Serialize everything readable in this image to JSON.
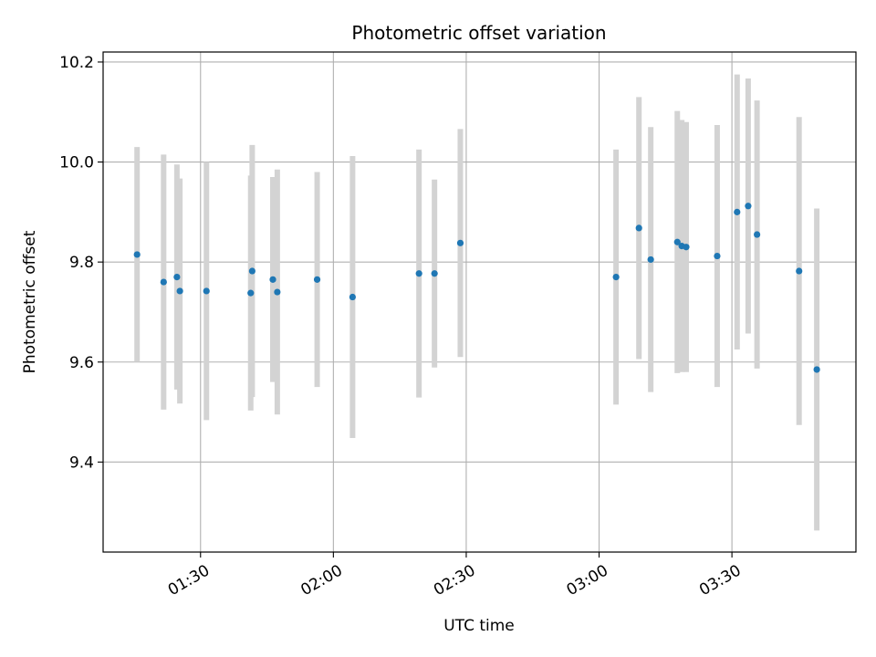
{
  "chart_data": {
    "type": "scatter",
    "title": "Photometric offset variation",
    "xlabel": "UTC time",
    "ylabel": "Photometric offset",
    "x_ticks": [
      "01:30",
      "02:00",
      "02:30",
      "03:00",
      "03:30"
    ],
    "y_ticks": [
      "9.4",
      "9.6",
      "9.8",
      "10.0",
      "10.2"
    ],
    "xlim": [
      "01:08",
      "03:58"
    ],
    "ylim": [
      9.22,
      10.22
    ],
    "grid": true,
    "errorbar_color": "#d3d3d3",
    "point_color": "#1f77b4",
    "points": [
      {
        "x": "01:15:40",
        "y": 9.815,
        "err": 0.215
      },
      {
        "x": "01:21:40",
        "y": 9.76,
        "err": 0.255
      },
      {
        "x": "01:24:40",
        "y": 9.77,
        "err": 0.225
      },
      {
        "x": "01:25:20",
        "y": 9.742,
        "err": 0.225
      },
      {
        "x": "01:31:20",
        "y": 9.742,
        "err": 0.258
      },
      {
        "x": "01:41:20",
        "y": 9.738,
        "err": 0.235
      },
      {
        "x": "01:41:40",
        "y": 9.782,
        "err": 0.252
      },
      {
        "x": "01:46:20",
        "y": 9.765,
        "err": 0.205
      },
      {
        "x": "01:47:20",
        "y": 9.74,
        "err": 0.245
      },
      {
        "x": "01:56:20",
        "y": 9.765,
        "err": 0.215
      },
      {
        "x": "02:04:20",
        "y": 9.73,
        "err": 0.282
      },
      {
        "x": "02:19:20",
        "y": 9.777,
        "err": 0.248
      },
      {
        "x": "02:22:50",
        "y": 9.777,
        "err": 0.188
      },
      {
        "x": "02:28:40",
        "y": 9.838,
        "err": 0.228
      },
      {
        "x": "03:03:50",
        "y": 9.77,
        "err": 0.255
      },
      {
        "x": "03:09:00",
        "y": 9.868,
        "err": 0.262
      },
      {
        "x": "03:11:40",
        "y": 9.805,
        "err": 0.265
      },
      {
        "x": "03:17:40",
        "y": 9.84,
        "err": 0.262
      },
      {
        "x": "03:18:40",
        "y": 9.832,
        "err": 0.252
      },
      {
        "x": "03:19:40",
        "y": 9.83,
        "err": 0.25
      },
      {
        "x": "03:26:40",
        "y": 9.812,
        "err": 0.262
      },
      {
        "x": "03:31:10",
        "y": 9.9,
        "err": 0.275
      },
      {
        "x": "03:33:40",
        "y": 9.912,
        "err": 0.255
      },
      {
        "x": "03:35:40",
        "y": 9.855,
        "err": 0.268
      },
      {
        "x": "03:45:10",
        "y": 9.782,
        "err": 0.308
      },
      {
        "x": "03:49:10",
        "y": 9.585,
        "err": 0.322
      }
    ]
  }
}
